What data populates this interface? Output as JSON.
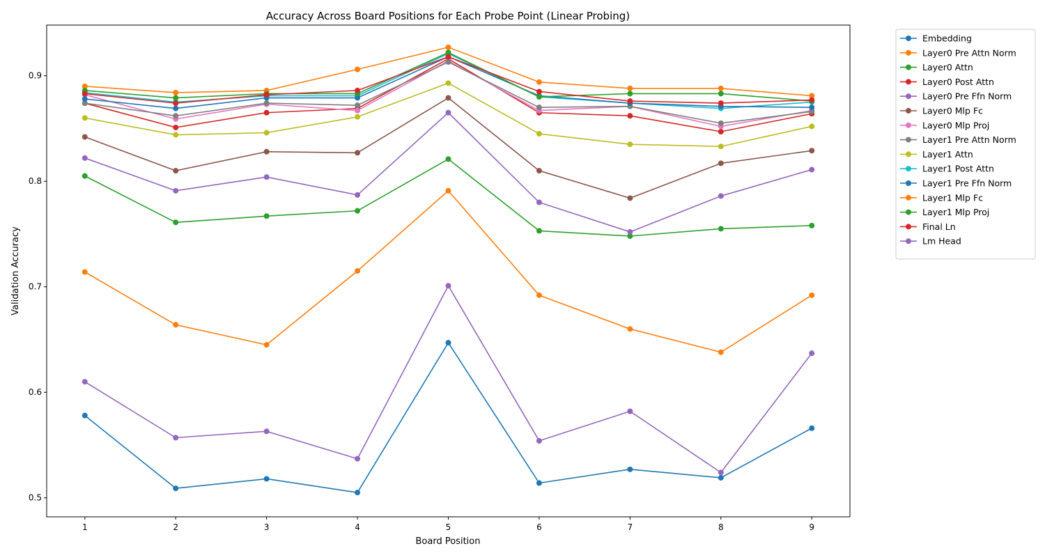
{
  "chart_data": {
    "type": "line",
    "title": "Accuracy Across Board Positions for Each Probe Point (Linear Probing)",
    "xlabel": "Board Position",
    "ylabel": "Validation Accuracy",
    "x": [
      1,
      2,
      3,
      4,
      5,
      6,
      7,
      8,
      9
    ],
    "xticks": [
      1,
      2,
      3,
      4,
      5,
      6,
      7,
      8,
      9
    ],
    "xlim": [
      0.58,
      9.42
    ],
    "yticks": [
      0.5,
      0.6,
      0.7,
      0.8,
      0.9
    ],
    "ytick_labels": [
      "0.5",
      "0.6",
      "0.7",
      "0.8",
      "0.9"
    ],
    "ylim": [
      0.482,
      0.948
    ],
    "grid": false,
    "legend_position": "outside-right-top",
    "series": [
      {
        "name": "Embedding",
        "color": "#1f77b4",
        "values": [
          0.578,
          0.509,
          0.518,
          0.505,
          0.647,
          0.514,
          0.527,
          0.519,
          0.566
        ]
      },
      {
        "name": "Layer0 Pre Attn Norm",
        "color": "#ff7f0e",
        "values": [
          0.714,
          0.664,
          0.645,
          0.715,
          0.791,
          0.692,
          0.66,
          0.638,
          0.692
        ]
      },
      {
        "name": "Layer0 Attn",
        "color": "#2ca02c",
        "values": [
          0.805,
          0.761,
          0.767,
          0.772,
          0.821,
          0.753,
          0.748,
          0.755,
          0.758
        ]
      },
      {
        "name": "Layer0 Post Attn",
        "color": "#d62728",
        "values": [
          0.874,
          0.851,
          0.865,
          0.869,
          0.916,
          0.865,
          0.862,
          0.847,
          0.864
        ]
      },
      {
        "name": "Layer0 Pre Ffn Norm",
        "color": "#9467bd",
        "values": [
          0.822,
          0.791,
          0.804,
          0.787,
          0.865,
          0.78,
          0.752,
          0.786,
          0.811
        ]
      },
      {
        "name": "Layer0 Mlp Fc",
        "color": "#8c564b",
        "values": [
          0.842,
          0.81,
          0.828,
          0.827,
          0.879,
          0.81,
          0.784,
          0.817,
          0.829
        ]
      },
      {
        "name": "Layer0 Mlp Proj",
        "color": "#e377c2",
        "values": [
          0.882,
          0.859,
          0.873,
          0.867,
          0.914,
          0.867,
          0.871,
          0.852,
          0.867
        ]
      },
      {
        "name": "Layer1 Pre Attn Norm",
        "color": "#7f7f7f",
        "values": [
          0.874,
          0.862,
          0.874,
          0.872,
          0.913,
          0.87,
          0.871,
          0.855,
          0.866
        ]
      },
      {
        "name": "Layer1 Attn",
        "color": "#bcbd22",
        "values": [
          0.86,
          0.844,
          0.846,
          0.861,
          0.893,
          0.845,
          0.835,
          0.833,
          0.852
        ]
      },
      {
        "name": "Layer1 Post Attn",
        "color": "#17becf",
        "values": [
          0.884,
          0.875,
          0.881,
          0.881,
          0.921,
          0.88,
          0.874,
          0.869,
          0.875
        ]
      },
      {
        "name": "Layer1 Pre Ffn Norm",
        "color": "#1f77b4",
        "values": [
          0.878,
          0.869,
          0.879,
          0.879,
          0.918,
          0.881,
          0.874,
          0.871,
          0.87
        ]
      },
      {
        "name": "Layer1 Mlp Fc",
        "color": "#ff7f0e",
        "values": [
          0.89,
          0.884,
          0.886,
          0.906,
          0.927,
          0.894,
          0.888,
          0.888,
          0.881
        ]
      },
      {
        "name": "Layer1 Mlp Proj",
        "color": "#2ca02c",
        "values": [
          0.886,
          0.879,
          0.883,
          0.883,
          0.922,
          0.88,
          0.883,
          0.883,
          0.876
        ]
      },
      {
        "name": "Final Ln",
        "color": "#d62728",
        "values": [
          0.883,
          0.874,
          0.882,
          0.886,
          0.918,
          0.885,
          0.876,
          0.874,
          0.877
        ]
      },
      {
        "name": "Lm Head",
        "color": "#9467bd",
        "values": [
          0.61,
          0.557,
          0.563,
          0.537,
          0.701,
          0.554,
          0.582,
          0.524,
          0.637
        ]
      }
    ]
  }
}
